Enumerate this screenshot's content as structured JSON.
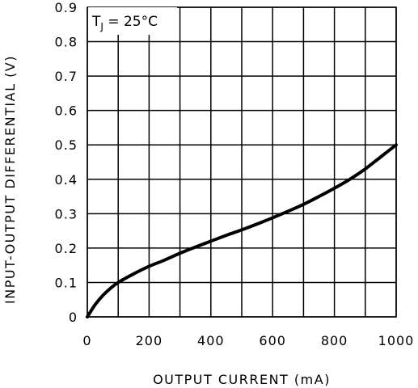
{
  "chart_data": {
    "type": "line",
    "title": "",
    "xlabel": "OUTPUT CURRENT (mA)",
    "ylabel": "INPUT-OUTPUT DIFFERENTIAL (V)",
    "xlim": [
      0,
      1000
    ],
    "ylim": [
      0,
      0.9
    ],
    "x_ticks": [
      0,
      100,
      200,
      300,
      400,
      500,
      600,
      700,
      800,
      900,
      1000
    ],
    "x_tick_labels": [
      "0",
      "200",
      "400",
      "600",
      "800",
      "1000"
    ],
    "x_tick_label_values": [
      0,
      200,
      400,
      600,
      800,
      1000
    ],
    "y_ticks": [
      0,
      0.1,
      0.2,
      0.3,
      0.4,
      0.5,
      0.6,
      0.7,
      0.8,
      0.9
    ],
    "y_tick_labels": [
      "0",
      "0.1",
      "0.2",
      "0.3",
      "0.4",
      "0.5",
      "0.6",
      "0.7",
      "0.8",
      "0.9"
    ],
    "grid": true,
    "legend": "none",
    "annotation": {
      "main": "T",
      "subscript": "J",
      "rest": " = 25°C"
    },
    "series": [
      {
        "x": [
          0,
          25,
          50,
          75,
          100,
          150,
          200,
          250,
          300,
          350,
          400,
          450,
          500,
          550,
          600,
          650,
          700,
          750,
          800,
          850,
          900,
          950,
          1000
        ],
        "y": [
          0.0,
          0.035,
          0.062,
          0.083,
          0.1,
          0.125,
          0.147,
          0.165,
          0.185,
          0.203,
          0.22,
          0.237,
          0.253,
          0.27,
          0.288,
          0.307,
          0.327,
          0.35,
          0.374,
          0.4,
          0.43,
          0.465,
          0.5
        ]
      }
    ],
    "colors": {
      "line": "#000000",
      "grid": "#000000",
      "background": "#ffffff"
    }
  }
}
